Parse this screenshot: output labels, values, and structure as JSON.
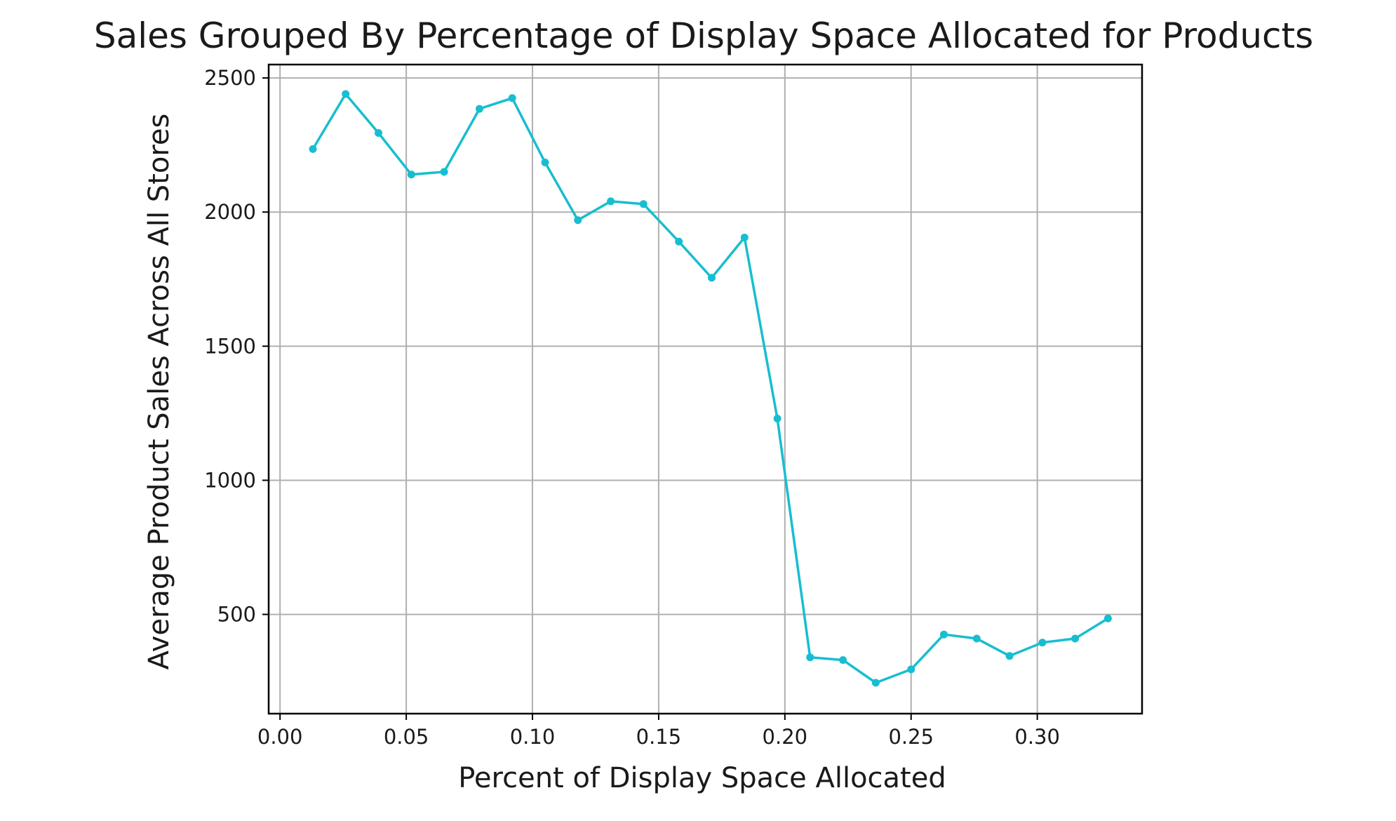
{
  "chart_data": {
    "type": "line",
    "title": "Sales Grouped By Percentage of Display Space Allocated for Products",
    "xlabel": "Percent of Display Space Allocated",
    "ylabel": "Average Product Sales Across All Stores",
    "xlim": [
      -0.0045,
      0.3415
    ],
    "ylim": [
      130,
      2550
    ],
    "x_ticks": [
      0.0,
      0.05,
      0.1,
      0.15,
      0.2,
      0.25,
      0.3
    ],
    "x_tick_labels": [
      "0.00",
      "0.05",
      "0.10",
      "0.15",
      "0.20",
      "0.25",
      "0.30"
    ],
    "y_ticks": [
      500,
      1000,
      1500,
      2000,
      2500
    ],
    "y_tick_labels": [
      "500",
      "1000",
      "1500",
      "2000",
      "2500"
    ],
    "grid": true,
    "series": [
      {
        "color": "#17becf",
        "marker": "dot",
        "x": [
          0.013,
          0.026,
          0.039,
          0.052,
          0.065,
          0.079,
          0.092,
          0.105,
          0.118,
          0.131,
          0.144,
          0.158,
          0.171,
          0.184,
          0.197,
          0.21,
          0.223,
          0.236,
          0.25,
          0.263,
          0.276,
          0.289,
          0.302,
          0.315,
          0.328
        ],
        "y": [
          2235,
          2440,
          2295,
          2140,
          2150,
          2385,
          2425,
          2185,
          1970,
          2040,
          2030,
          1890,
          1755,
          1905,
          1230,
          340,
          330,
          245,
          295,
          425,
          410,
          345,
          395,
          410,
          485
        ]
      }
    ]
  }
}
